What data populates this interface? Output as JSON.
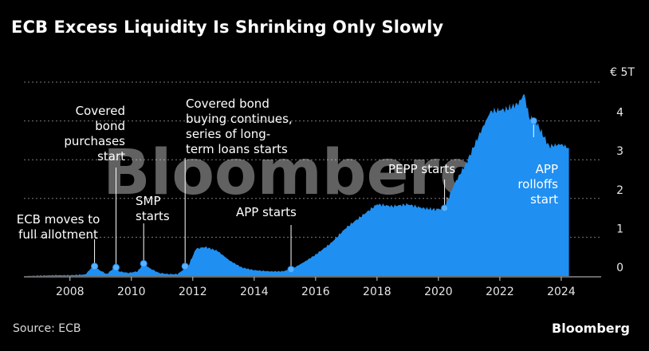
{
  "title": "ECB Excess Liquidity Is Shrinking Only Slowly",
  "source": "Source: ECB",
  "logo": "Bloomberg",
  "watermark": "Bloomberg",
  "colors": {
    "background": "#000000",
    "area": "#1f8ff2",
    "grid": "#7a7a7a",
    "text": "#ffffff"
  },
  "chart_data": {
    "type": "area",
    "title": "ECB Excess Liquidity Is Shrinking Only Slowly",
    "xlabel": "",
    "ylabel": "",
    "unit": "€ 5T",
    "xlim": [
      2006.5,
      2025.3
    ],
    "ylim": [
      0,
      5
    ],
    "x_ticks": [
      2008,
      2010,
      2012,
      2014,
      2016,
      2018,
      2020,
      2022,
      2024
    ],
    "y_ticks": [
      0,
      1,
      2,
      3,
      4
    ],
    "grid": "horizontal dotted",
    "series": [
      {
        "values": [
          [
            2006.6,
            0.0
          ],
          [
            2007.5,
            0.02
          ],
          [
            2008.0,
            0.02
          ],
          [
            2008.5,
            0.04
          ],
          [
            2008.75,
            0.25
          ],
          [
            2008.9,
            0.18
          ],
          [
            2009.2,
            0.05
          ],
          [
            2009.45,
            0.22
          ],
          [
            2009.6,
            0.12
          ],
          [
            2009.9,
            0.08
          ],
          [
            2010.2,
            0.12
          ],
          [
            2010.4,
            0.32
          ],
          [
            2010.6,
            0.2
          ],
          [
            2010.9,
            0.08
          ],
          [
            2011.2,
            0.05
          ],
          [
            2011.5,
            0.05
          ],
          [
            2011.85,
            0.25
          ],
          [
            2012.1,
            0.7
          ],
          [
            2012.4,
            0.75
          ],
          [
            2012.8,
            0.65
          ],
          [
            2013.2,
            0.4
          ],
          [
            2013.6,
            0.22
          ],
          [
            2014.0,
            0.15
          ],
          [
            2014.5,
            0.12
          ],
          [
            2014.9,
            0.12
          ],
          [
            2015.2,
            0.17
          ],
          [
            2015.6,
            0.35
          ],
          [
            2016.0,
            0.55
          ],
          [
            2016.5,
            0.85
          ],
          [
            2017.0,
            1.25
          ],
          [
            2017.5,
            1.55
          ],
          [
            2018.0,
            1.85
          ],
          [
            2018.5,
            1.8
          ],
          [
            2019.0,
            1.85
          ],
          [
            2019.5,
            1.75
          ],
          [
            2019.9,
            1.72
          ],
          [
            2020.2,
            1.75
          ],
          [
            2020.5,
            2.35
          ],
          [
            2020.9,
            2.9
          ],
          [
            2021.3,
            3.6
          ],
          [
            2021.7,
            4.25
          ],
          [
            2022.2,
            4.3
          ],
          [
            2022.6,
            4.45
          ],
          [
            2022.8,
            4.7
          ],
          [
            2022.95,
            4.1
          ],
          [
            2023.2,
            3.95
          ],
          [
            2023.6,
            3.35
          ],
          [
            2024.0,
            3.4
          ],
          [
            2024.25,
            3.3
          ]
        ]
      }
    ],
    "annotations": [
      {
        "text": [
          "ECB moves to",
          "full allotment"
        ],
        "x": 2008.8,
        "y": 0.25
      },
      {
        "text": [
          "Covered",
          "bond",
          "purchases",
          "start"
        ],
        "x": 2009.5,
        "y": 0.22
      },
      {
        "text": [
          "SMP",
          "starts"
        ],
        "x": 2010.4,
        "y": 0.32
      },
      {
        "text": [
          "Covered bond",
          "buying continues,",
          "series of long-",
          "term loans starts"
        ],
        "x": 2011.75,
        "y": 0.25
      },
      {
        "text": [
          "APP starts"
        ],
        "x": 2015.2,
        "y": 0.17
      },
      {
        "text": [
          "PEPP starts"
        ],
        "x": 2020.2,
        "y": 1.75
      },
      {
        "text": [
          "APP",
          "rolloffs",
          "start"
        ],
        "x": 2023.1,
        "y": 4.0
      }
    ]
  }
}
